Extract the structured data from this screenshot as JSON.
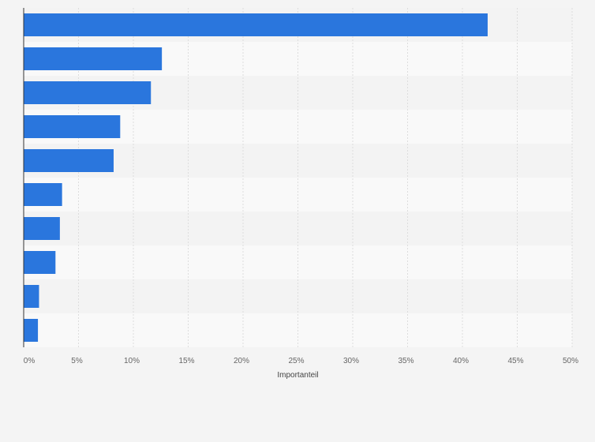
{
  "chart_data": {
    "type": "bar",
    "orientation": "horizontal",
    "categories": [
      "",
      "",
      "",
      "",
      "",
      "",
      "",
      "",
      "",
      ""
    ],
    "values": [
      42.3,
      12.6,
      11.6,
      8.8,
      8.2,
      3.5,
      3.3,
      2.9,
      1.4,
      1.3
    ],
    "title": "",
    "xlabel": "Importanteil",
    "ylabel": "",
    "xlim": [
      0,
      50
    ],
    "xticks": [
      0,
      5,
      10,
      15,
      20,
      25,
      30,
      35,
      40,
      45,
      50
    ],
    "xtick_labels": [
      "0%",
      "5%",
      "10%",
      "15%",
      "20%",
      "25%",
      "30%",
      "35%",
      "40%",
      "45%",
      "50%"
    ],
    "grid": true,
    "legend": "none"
  },
  "colors": {
    "bar": "#2a76dd",
    "background": "#f4f4f4",
    "band_light": "#f9f9f9",
    "band_dark": "#f3f3f3",
    "grid": "#dddddd",
    "axis": "#333333"
  }
}
